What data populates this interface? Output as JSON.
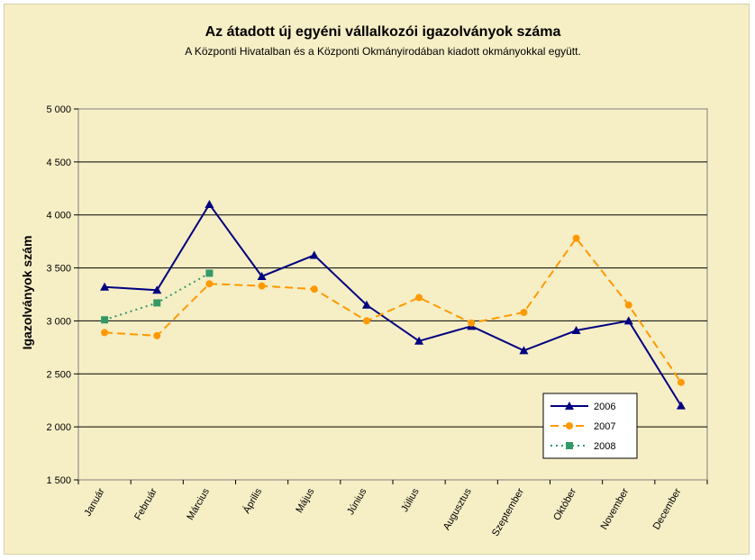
{
  "chart_data": {
    "type": "line",
    "title": "Az átadott új egyéni vállalkozói  igazolványok száma",
    "subtitle": "A Központi Hivatalban és a Központi Okmányirodában kiadott okmányokkal együtt.",
    "xlabel": "",
    "ylabel": "Igazolványok szám",
    "ylim": [
      1500,
      5000
    ],
    "yticks": [
      1500,
      2000,
      2500,
      3000,
      3500,
      4000,
      4500,
      5000
    ],
    "ytick_labels": [
      "1 500",
      "2 000",
      "2 500",
      "3 000",
      "3 500",
      "4 000",
      "4 500",
      "5 000"
    ],
    "grid": true,
    "legend_position": "bottom-right",
    "categories": [
      "Január",
      "Február",
      "Március",
      "Április",
      "Május",
      "Június",
      "Július",
      "Augusztus",
      "Szeptember",
      "Október",
      "November",
      "December"
    ],
    "series": [
      {
        "name": "2006",
        "color": "#000080",
        "style": "solid",
        "marker": "triangle",
        "values": [
          3320,
          3290,
          4100,
          3420,
          3620,
          3150,
          2810,
          2950,
          2720,
          2910,
          3000,
          2200
        ]
      },
      {
        "name": "2007",
        "color": "#ff9900",
        "style": "dashed",
        "marker": "circle",
        "values": [
          2890,
          2860,
          3350,
          3330,
          3300,
          3000,
          3220,
          2980,
          3080,
          3780,
          3150,
          2420
        ]
      },
      {
        "name": "2008",
        "color": "#339966",
        "style": "dotted",
        "marker": "square",
        "values": [
          3010,
          3170,
          3450,
          null,
          null,
          null,
          null,
          null,
          null,
          null,
          null,
          null
        ]
      }
    ]
  }
}
